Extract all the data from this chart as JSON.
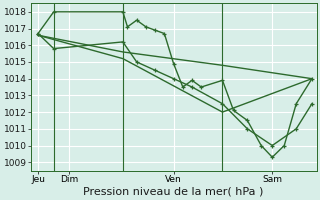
{
  "background_color": "#d8eee8",
  "grid_color": "#ffffff",
  "line_color": "#2d6a2d",
  "ylim": [
    1008.5,
    1018.5
  ],
  "yticks": [
    1009,
    1010,
    1011,
    1012,
    1013,
    1014,
    1015,
    1016,
    1017,
    1018
  ],
  "xlabel": "Pression niveau de la mer( hPa )",
  "xlabel_fontsize": 8,
  "tick_fontsize": 6.5,
  "day_labels": [
    "Jeu",
    "Dim",
    "Ven",
    "Sam"
  ],
  "day_positions": [
    0.08,
    0.42,
    1.55,
    2.62
  ],
  "vline_x": [
    0.25,
    1.0,
    2.08
  ],
  "xlim": [
    0.0,
    3.1
  ],
  "line1_x": [
    0.08,
    0.25,
    1.0,
    1.05,
    1.15,
    1.25,
    1.35,
    1.45,
    1.55,
    1.65,
    1.75,
    1.85,
    2.08,
    2.2,
    2.35,
    2.5,
    2.62,
    2.75,
    2.88,
    3.05
  ],
  "line1_y": [
    1016.7,
    1018.0,
    1018.0,
    1017.1,
    1017.5,
    1017.1,
    1016.9,
    1016.7,
    1014.9,
    1013.5,
    1013.9,
    1013.5,
    1013.9,
    1012.1,
    1011.5,
    1010.0,
    1009.3,
    1010.0,
    1012.5,
    1014.0
  ],
  "line2_x": [
    0.08,
    0.25,
    1.0,
    1.15,
    1.35,
    1.55,
    1.75,
    2.08,
    2.35,
    2.62,
    2.88,
    3.05
  ],
  "line2_y": [
    1016.7,
    1015.8,
    1016.2,
    1015.0,
    1014.5,
    1014.0,
    1013.5,
    1012.5,
    1011.0,
    1010.0,
    1011.0,
    1012.5
  ],
  "line3_x": [
    0.08,
    1.0,
    2.08,
    3.05
  ],
  "line3_y": [
    1016.6,
    1015.6,
    1014.8,
    1014.0
  ],
  "line4_x": [
    0.08,
    1.0,
    2.08,
    3.05
  ],
  "line4_y": [
    1016.6,
    1015.2,
    1012.0,
    1014.0
  ]
}
